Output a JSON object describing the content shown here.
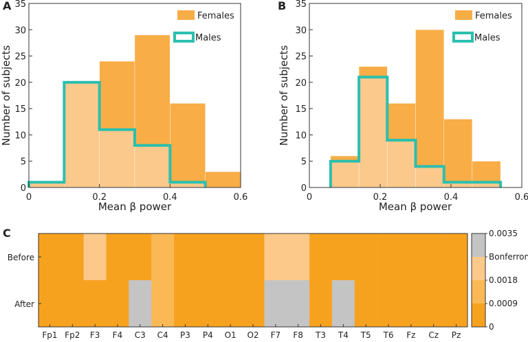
{
  "colors": {
    "female": "#f8ad47",
    "overlap": "#fcc98d",
    "male_line": "#2bbfae",
    "heat_dark": "#f7a21f",
    "heat_mid": "#fbb955",
    "heat_light": "#fdc98a",
    "heat_gray": "#c4c4c4"
  },
  "chart_data": [
    {
      "panel": "A",
      "type": "bar",
      "xlabel": "Mean β power",
      "ylabel": "Number of subjects",
      "xlim": [
        0,
        0.6
      ],
      "ylim": [
        0,
        35
      ],
      "xticks": [
        "0",
        "0.2",
        "0.4",
        "0.6"
      ],
      "yticks": [
        "0",
        "5",
        "10",
        "15",
        "20",
        "25",
        "30",
        "35"
      ],
      "legend": [
        "Females",
        "Males"
      ],
      "females": {
        "edges": [
          0,
          0.1,
          0.2,
          0.3,
          0.4,
          0.5,
          0.6
        ],
        "counts": [
          1,
          20,
          24,
          29,
          16,
          3
        ]
      },
      "males": {
        "edges": [
          0,
          0.1,
          0.2,
          0.3,
          0.4,
          0.5
        ],
        "counts": [
          1,
          20,
          11,
          8,
          1
        ]
      }
    },
    {
      "panel": "B",
      "type": "bar",
      "xlabel": "Mean β power",
      "ylabel": "Number of subjects",
      "xlim": [
        0,
        0.6
      ],
      "ylim": [
        0,
        35
      ],
      "xticks": [
        "0",
        "0.2",
        "0.4",
        "0.6"
      ],
      "yticks": [
        "0",
        "5",
        "10",
        "15",
        "20",
        "25",
        "30",
        "35"
      ],
      "legend": [
        "Females",
        "Males"
      ],
      "females": {
        "edges": [
          0.06,
          0.14,
          0.22,
          0.3,
          0.38,
          0.46,
          0.54
        ],
        "counts": [
          6,
          23,
          16,
          30,
          13,
          5
        ]
      },
      "males": {
        "edges": [
          0.06,
          0.14,
          0.22,
          0.3,
          0.38,
          0.54
        ],
        "counts": [
          5,
          21,
          9,
          4,
          1
        ]
      }
    },
    {
      "panel": "C",
      "type": "heatmap",
      "columns": [
        "Fp1",
        "Fp2",
        "F3",
        "F4",
        "C3",
        "C4",
        "P3",
        "P4",
        "O1",
        "O2",
        "F7",
        "F8",
        "T3",
        "T4",
        "T5",
        "T6",
        "Fz",
        "Cz",
        "Pz"
      ],
      "rows": [
        "Before",
        "After"
      ],
      "levels": [
        [
          0,
          0,
          2,
          0,
          0,
          1,
          0,
          0,
          0,
          0,
          2,
          2,
          0,
          0,
          0,
          0,
          0,
          0,
          0
        ],
        [
          0,
          0,
          0,
          0,
          4,
          1,
          0,
          0,
          0,
          0,
          4,
          4,
          0,
          4,
          0,
          0,
          0,
          0,
          0
        ]
      ],
      "colorbar_labels": [
        "0.0035",
        "Bonferroni",
        "0.0018",
        "0.0009",
        "0"
      ]
    }
  ]
}
